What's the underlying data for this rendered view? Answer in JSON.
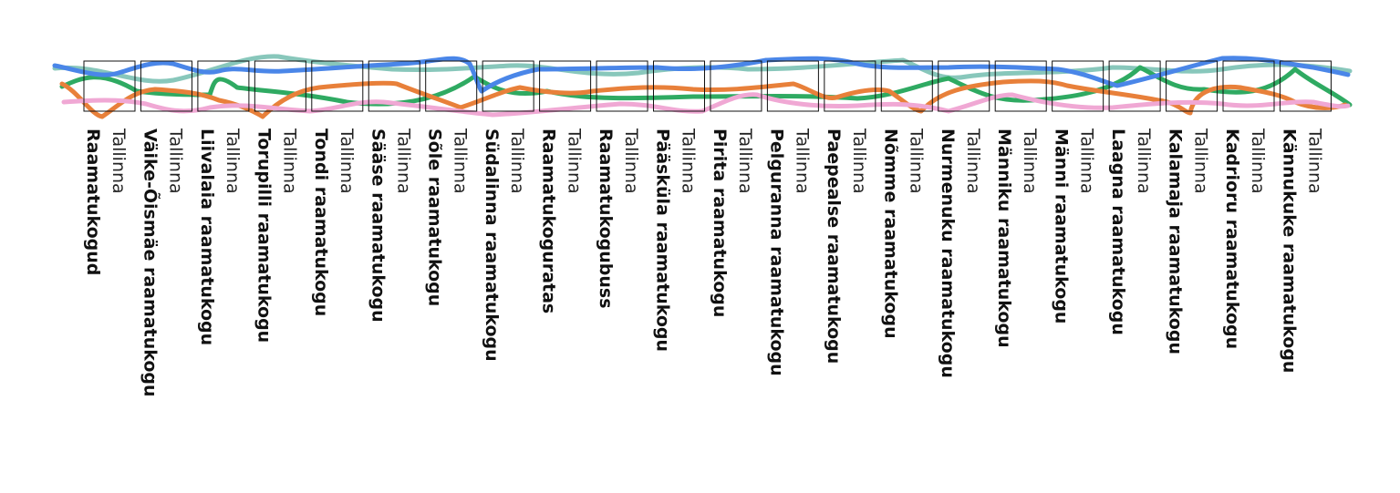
{
  "items": [
    {
      "name": "Raamatukogud",
      "city": "Tallinna"
    },
    {
      "name": "Väike-Õismäe raamatukogu",
      "city": "Tallinna"
    },
    {
      "name": "Liivalaia raamatukogu",
      "city": "Tallinna"
    },
    {
      "name": "Torupilli raamatukogu",
      "city": "Tallinna"
    },
    {
      "name": "Tondi raamatukogu",
      "city": "Tallinna"
    },
    {
      "name": "Sääse raamatukogu",
      "city": "Tallinna"
    },
    {
      "name": "Sõle raamatukogu",
      "city": "Tallinna"
    },
    {
      "name": "Südalinna raamatukogu",
      "city": "Tallinna"
    },
    {
      "name": "Raamatukoguratas",
      "city": "Tallinna"
    },
    {
      "name": "Raamatukogubuss",
      "city": "Tallinna"
    },
    {
      "name": "Pääsküla raamatukogu",
      "city": "Tallinna"
    },
    {
      "name": "Pirita raamatukogu",
      "city": "Tallinna"
    },
    {
      "name": "Pelguranna raamatukogu",
      "city": "Tallinna"
    },
    {
      "name": "Paepealse raamatukogu",
      "city": "Tallinna"
    },
    {
      "name": "Nõmme raamatukogu",
      "city": "Tallinna"
    },
    {
      "name": "Nurmenuku raamatukogu",
      "city": "Tallinna"
    },
    {
      "name": "Männiku raamatukogu",
      "city": "Tallinna"
    },
    {
      "name": "Männi raamatukogu",
      "city": "Tallinna"
    },
    {
      "name": "Laagna raamatukogu",
      "city": "Tallinna"
    },
    {
      "name": "Kalamaja raamatukogu",
      "city": "Tallinna"
    },
    {
      "name": "Kadrioru raamatukogu",
      "city": "Tallinna"
    },
    {
      "name": "Kännukuke raamatukogu",
      "city": "Tallinna"
    }
  ]
}
